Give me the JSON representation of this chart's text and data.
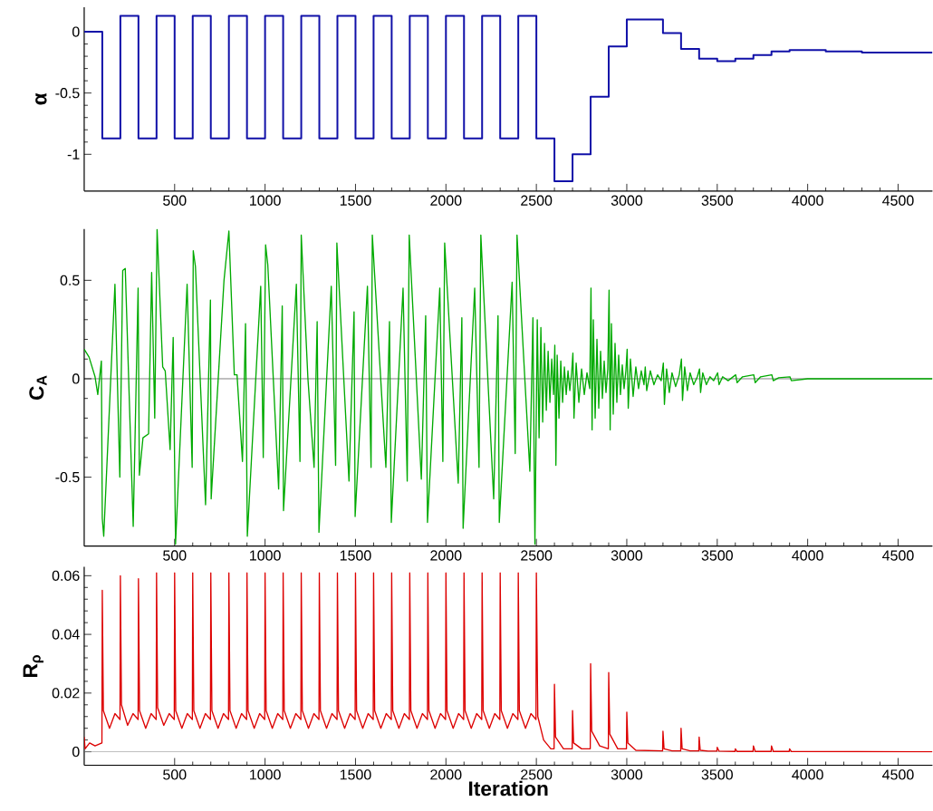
{
  "chart_data": [
    {
      "type": "step",
      "ylabel": "α",
      "color": "#1010a8",
      "x": [
        0,
        100,
        200,
        300,
        400,
        500,
        600,
        700,
        800,
        900,
        1000,
        1100,
        1200,
        1300,
        1400,
        1500,
        1600,
        1700,
        1800,
        1900,
        2000,
        2100,
        2200,
        2300,
        2400,
        2500,
        2600,
        2700,
        2800,
        2900,
        3000,
        3200,
        3300,
        3400,
        3500,
        3600,
        3700,
        3800,
        3900,
        4100,
        4300,
        4690
      ],
      "values": [
        0,
        -0.87,
        0.13,
        -0.87,
        0.13,
        -0.87,
        0.13,
        -0.87,
        0.13,
        -0.87,
        0.13,
        -0.87,
        0.13,
        -0.87,
        0.13,
        -0.87,
        0.13,
        -0.87,
        0.13,
        -0.87,
        0.13,
        -0.87,
        0.13,
        -0.87,
        0.13,
        -0.87,
        -1.22,
        -1.0,
        -0.53,
        -0.12,
        0.1,
        -0.01,
        -0.14,
        -0.22,
        -0.24,
        -0.22,
        -0.19,
        -0.16,
        -0.15,
        -0.16,
        -0.17,
        -0.17
      ],
      "xlim": [
        0,
        4690
      ],
      "xticks": [
        500,
        1000,
        1500,
        2000,
        2500,
        3000,
        3500,
        4000,
        4500
      ],
      "ylim": [
        -1.3,
        0.2
      ],
      "yticks": [
        -1,
        -0.5,
        0
      ]
    },
    {
      "type": "line",
      "ylabel": "C$_{A}$",
      "color": "#00aa00",
      "x": [
        0,
        27,
        60,
        75,
        95,
        100,
        108,
        170,
        197,
        213,
        227,
        271,
        298,
        305,
        325,
        356,
        373,
        390,
        403,
        434,
        448,
        475,
        492,
        505,
        569,
        597,
        603,
        615,
        671,
        698,
        702,
        773,
        800,
        830,
        845,
        875,
        892,
        902,
        976,
        990,
        1003,
        1015,
        1075,
        1095,
        1102,
        1173,
        1193,
        1200,
        1237,
        1271,
        1288,
        1298,
        1366,
        1390,
        1397,
        1464,
        1492,
        1498,
        1566,
        1586,
        1593,
        1668,
        1688,
        1698,
        1763,
        1786,
        1797,
        1864,
        1888,
        1898,
        1966,
        1983,
        1993,
        2068,
        2088,
        2095,
        2159,
        2183,
        2193,
        2264,
        2288,
        2295,
        2366,
        2383,
        2393,
        2464,
        2481,
        2492,
        2505,
        2515,
        2525,
        2535,
        2545,
        2555,
        2565,
        2575,
        2585,
        2595,
        2602,
        2608,
        2615,
        2625,
        2635,
        2645,
        2655,
        2665,
        2675,
        2685,
        2695,
        2702,
        2708,
        2720,
        2735,
        2750,
        2765,
        2780,
        2795,
        2802,
        2808,
        2815,
        2825,
        2835,
        2845,
        2855,
        2865,
        2875,
        2885,
        2895,
        2902,
        2908,
        2915,
        2925,
        2935,
        2945,
        2955,
        2965,
        2975,
        2985,
        2995,
        3002,
        3008,
        3020,
        3035,
        3050,
        3065,
        3080,
        3095,
        3102,
        3110,
        3130,
        3150,
        3170,
        3190,
        3202,
        3208,
        3220,
        3235,
        3250,
        3270,
        3290,
        3302,
        3308,
        3320,
        3335,
        3350,
        3370,
        3390,
        3402,
        3408,
        3420,
        3440,
        3460,
        3480,
        3502,
        3510,
        3530,
        3560,
        3602,
        3610,
        3640,
        3702,
        3710,
        3740,
        3802,
        3810,
        3840,
        3902,
        3910,
        4000,
        4690
      ],
      "values": [
        0.15,
        0.11,
        0.01,
        -0.08,
        0.09,
        -0.71,
        -0.8,
        0.48,
        -0.5,
        0.55,
        0.56,
        -0.75,
        0.46,
        -0.49,
        -0.3,
        -0.28,
        0.54,
        -0.2,
        0.76,
        0.06,
        0.04,
        -0.36,
        0.21,
        -0.84,
        0.48,
        -0.45,
        0.65,
        0.57,
        -0.64,
        0.4,
        -0.61,
        0.5,
        0.75,
        0.02,
        0.02,
        -0.42,
        0.28,
        -0.8,
        0.47,
        -0.4,
        0.68,
        0.58,
        -0.56,
        0.37,
        -0.67,
        0.48,
        -0.42,
        0.73,
        0.0,
        -0.45,
        0.29,
        -0.78,
        0.47,
        -0.44,
        0.69,
        -0.52,
        0.34,
        -0.7,
        0.47,
        -0.45,
        0.73,
        -0.45,
        0.29,
        -0.73,
        0.46,
        -0.52,
        0.73,
        -0.51,
        0.32,
        -0.73,
        0.46,
        -0.42,
        0.69,
        -0.53,
        0.31,
        -0.76,
        0.46,
        -0.45,
        0.73,
        -0.61,
        0.32,
        -0.73,
        0.49,
        -0.38,
        0.73,
        -0.47,
        0.31,
        -0.84,
        0.3,
        -0.3,
        0.26,
        -0.22,
        0.18,
        -0.16,
        0.14,
        -0.12,
        0.1,
        -0.08,
        0.17,
        -0.44,
        0.12,
        -0.2,
        0.09,
        -0.12,
        0.06,
        -0.08,
        0.04,
        -0.06,
        0.03,
        0.13,
        -0.2,
        0.08,
        -0.12,
        0.05,
        -0.08,
        0.03,
        -0.05,
        0.46,
        -0.26,
        0.3,
        -0.2,
        0.2,
        -0.15,
        0.14,
        -0.1,
        0.09,
        -0.07,
        0.05,
        0.45,
        -0.26,
        0.28,
        -0.18,
        0.18,
        -0.12,
        0.12,
        -0.08,
        0.07,
        -0.05,
        0.04,
        0.15,
        -0.15,
        0.1,
        -0.09,
        0.06,
        -0.05,
        0.04,
        -0.03,
        0.06,
        -0.06,
        0.04,
        -0.03,
        0.02,
        -0.01,
        0.08,
        -0.13,
        0.05,
        -0.07,
        0.03,
        -0.04,
        0.02,
        0.1,
        -0.11,
        0.06,
        -0.06,
        0.03,
        -0.03,
        0.01,
        0.05,
        -0.07,
        0.03,
        -0.03,
        0.01,
        -0.01,
        0.03,
        -0.03,
        0.01,
        -0.01,
        0.02,
        -0.02,
        0.01,
        0.02,
        -0.02,
        0.01,
        0.02,
        -0.01,
        0.005,
        0.01,
        -0.01,
        0,
        0
      ],
      "xlim": [
        0,
        4690
      ],
      "xticks": [
        500,
        1000,
        1500,
        2000,
        2500,
        3000,
        3500,
        4000,
        4500
      ],
      "ylim": [
        -0.85,
        0.76
      ],
      "yticks": [
        -0.5,
        0,
        0.5
      ],
      "ref_lines": [
        {
          "axis": "y",
          "value": 0,
          "color": "#000000"
        }
      ]
    },
    {
      "type": "line",
      "ylabel": "R$_{ρ}$",
      "xlabel": "Iteration",
      "color": "#dd0000",
      "x": [
        0,
        5,
        30,
        60,
        98,
        100,
        106,
        140,
        170,
        198,
        200,
        206,
        240,
        270,
        298,
        300,
        306,
        340,
        370,
        398,
        400,
        406,
        440,
        470,
        498,
        500,
        506,
        540,
        570,
        598,
        600,
        606,
        640,
        670,
        698,
        700,
        706,
        740,
        770,
        798,
        800,
        806,
        840,
        870,
        898,
        900,
        906,
        940,
        970,
        998,
        1000,
        1006,
        1040,
        1070,
        1098,
        1100,
        1106,
        1140,
        1170,
        1198,
        1200,
        1206,
        1240,
        1270,
        1298,
        1300,
        1306,
        1340,
        1370,
        1398,
        1400,
        1406,
        1440,
        1470,
        1498,
        1500,
        1506,
        1540,
        1570,
        1598,
        1600,
        1606,
        1640,
        1670,
        1698,
        1700,
        1706,
        1740,
        1770,
        1798,
        1800,
        1806,
        1840,
        1870,
        1898,
        1900,
        1906,
        1940,
        1970,
        1998,
        2000,
        2006,
        2040,
        2070,
        2098,
        2100,
        2106,
        2140,
        2170,
        2198,
        2200,
        2206,
        2240,
        2270,
        2298,
        2300,
        2306,
        2340,
        2370,
        2398,
        2400,
        2406,
        2440,
        2470,
        2498,
        2500,
        2508,
        2540,
        2580,
        2598,
        2600,
        2606,
        2650,
        2698,
        2700,
        2706,
        2750,
        2798,
        2800,
        2806,
        2850,
        2898,
        2900,
        2906,
        2950,
        2998,
        3000,
        3006,
        3050,
        3198,
        3200,
        3206,
        3250,
        3298,
        3300,
        3306,
        3350,
        3398,
        3400,
        3406,
        3450,
        3498,
        3500,
        3510,
        3598,
        3600,
        3610,
        3698,
        3700,
        3710,
        3798,
        3800,
        3810,
        3898,
        3900,
        3910,
        4690
      ],
      "values": [
        0.005,
        0.001,
        0.003,
        0.002,
        0.003,
        0.055,
        0.014,
        0.008,
        0.013,
        0.011,
        0.06,
        0.016,
        0.009,
        0.013,
        0.011,
        0.059,
        0.014,
        0.008,
        0.013,
        0.011,
        0.061,
        0.015,
        0.009,
        0.013,
        0.011,
        0.061,
        0.014,
        0.008,
        0.013,
        0.011,
        0.061,
        0.014,
        0.008,
        0.013,
        0.011,
        0.061,
        0.014,
        0.008,
        0.013,
        0.011,
        0.061,
        0.014,
        0.008,
        0.013,
        0.011,
        0.061,
        0.014,
        0.008,
        0.013,
        0.011,
        0.061,
        0.014,
        0.008,
        0.013,
        0.011,
        0.061,
        0.014,
        0.008,
        0.013,
        0.011,
        0.061,
        0.014,
        0.008,
        0.013,
        0.011,
        0.061,
        0.014,
        0.008,
        0.013,
        0.011,
        0.061,
        0.014,
        0.008,
        0.013,
        0.011,
        0.061,
        0.014,
        0.008,
        0.013,
        0.011,
        0.061,
        0.014,
        0.008,
        0.013,
        0.011,
        0.061,
        0.014,
        0.008,
        0.013,
        0.011,
        0.061,
        0.014,
        0.008,
        0.013,
        0.011,
        0.061,
        0.014,
        0.008,
        0.013,
        0.011,
        0.061,
        0.014,
        0.008,
        0.013,
        0.011,
        0.061,
        0.014,
        0.008,
        0.013,
        0.011,
        0.061,
        0.014,
        0.008,
        0.013,
        0.011,
        0.061,
        0.014,
        0.008,
        0.013,
        0.011,
        0.061,
        0.014,
        0.008,
        0.013,
        0.011,
        0.061,
        0.012,
        0.004,
        0.001,
        0.001,
        0.023,
        0.005,
        0.001,
        0.001,
        0.014,
        0.003,
        0.001,
        0.001,
        0.03,
        0.007,
        0.002,
        0.001,
        0.027,
        0.006,
        0.001,
        0.001,
        0.0135,
        0.003,
        0.0005,
        0.0003,
        0.007,
        0.001,
        0.0003,
        0.0003,
        0.008,
        0.001,
        0.0003,
        0.0003,
        0.005,
        0.0005,
        0.0002,
        0.0002,
        0.0015,
        0.0002,
        0.0001,
        0.001,
        0.0001,
        0.0001,
        0.002,
        0.0001,
        0.0001,
        0.002,
        0.0001,
        0.0001,
        0.001,
        0.0001,
        0
      ],
      "xlim": [
        0,
        4690
      ],
      "xticks": [
        500,
        1000,
        1500,
        2000,
        2500,
        3000,
        3500,
        4000,
        4500
      ],
      "ylim": [
        -0.0046,
        0.063
      ],
      "yticks": [
        0,
        0.02,
        0.04,
        0.06
      ],
      "ref_lines": [
        {
          "axis": "y",
          "value": 0,
          "color": "#999999"
        }
      ]
    }
  ]
}
